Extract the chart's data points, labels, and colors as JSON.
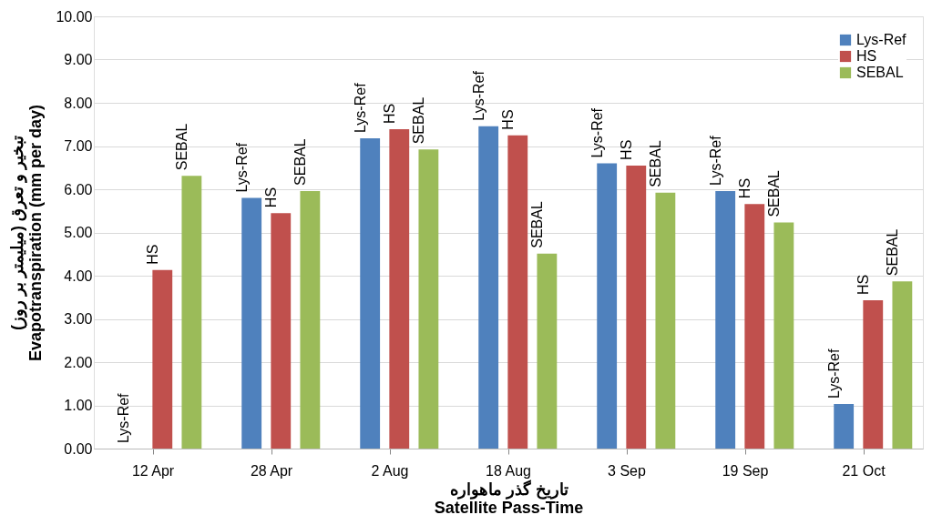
{
  "chart_data": {
    "type": "bar",
    "xlabel": "تاریخ گذر ماهواره\nSatellite Pass-Time",
    "ylabel": "تبخیر و تعرق (میلیمتر بر روز)\nEvapotranspiration (mm per day)",
    "categories": [
      "12 Apr",
      "28 Apr",
      "2 Aug",
      "18 Aug",
      "3 Sep",
      "19 Sep",
      "21 Oct"
    ],
    "series": [
      {
        "name": "Lys-Ref",
        "color": "#4f81bd",
        "values": [
          0,
          5.8,
          7.18,
          7.46,
          6.6,
          5.96,
          1.03
        ]
      },
      {
        "name": "HS",
        "color": "#c0504d",
        "values": [
          4.13,
          5.45,
          7.39,
          7.25,
          6.55,
          5.66,
          3.43
        ]
      },
      {
        "name": "SEBAL",
        "color": "#9bbb59",
        "values": [
          6.31,
          5.96,
          6.92,
          4.51,
          5.92,
          5.23,
          3.87
        ]
      }
    ],
    "ylim": [
      0,
      10
    ],
    "yticks": [
      {
        "value": 0,
        "label": "0.00"
      },
      {
        "value": 1,
        "label": "1.00"
      },
      {
        "value": 2,
        "label": "2.00"
      },
      {
        "value": 3,
        "label": "3.00"
      },
      {
        "value": 4,
        "label": "4.00"
      },
      {
        "value": 5,
        "label": "5.00"
      },
      {
        "value": 6,
        "label": "6.00"
      },
      {
        "value": 7,
        "label": "7.00"
      },
      {
        "value": 8,
        "label": "8.00"
      },
      {
        "value": 9,
        "label": "9.00"
      },
      {
        "value": 10,
        "label": "10.00"
      }
    ],
    "grid": "y",
    "legend": "top right"
  }
}
